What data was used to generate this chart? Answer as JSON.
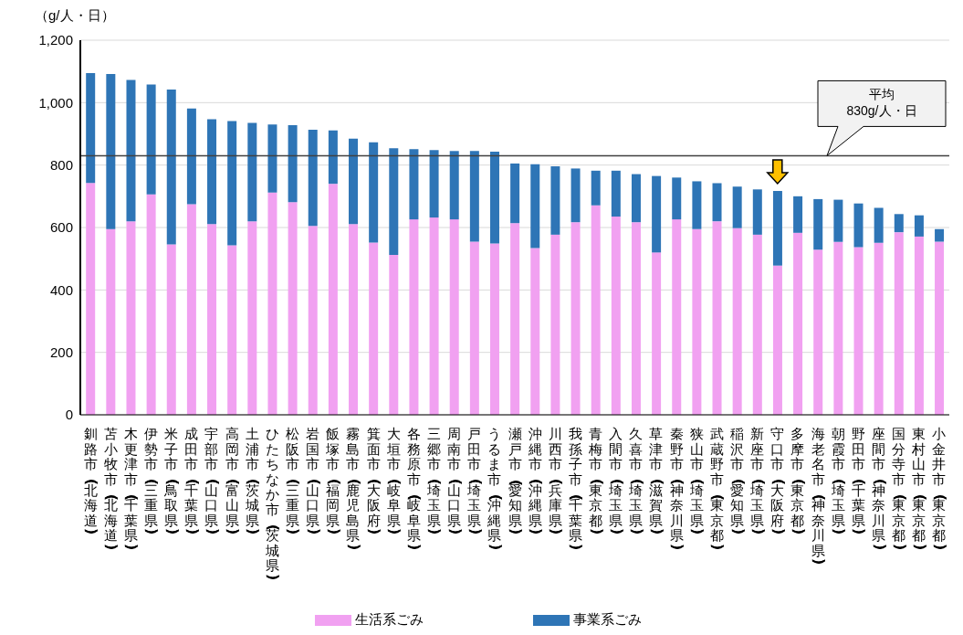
{
  "chart_data": {
    "type": "bar",
    "stacked": true,
    "ylabel": "（g/人・日）",
    "categories": [
      "釧路市（北海道）",
      "苫小牧市（北海道）",
      "木更津市（千葉県）",
      "伊勢市（三重県）",
      "米子市（鳥取県）",
      "成田市（千葉県）",
      "宇部市（山口県）",
      "高岡市（富山県）",
      "土浦市（茨城県）",
      "ひたちなか市（茨城県）",
      "松阪市（三重県）",
      "岩国市（山口県）",
      "飯塚市（福岡県）",
      "霧島市（鹿児島県）",
      "箕面市（大阪府）",
      "大垣市（岐阜県）",
      "各務原市（岐阜県）",
      "三郷市（埼玉県）",
      "周南市（山口県）",
      "戸田市（埼玉県）",
      "うるま市（沖縄県）",
      "瀬戸市（愛知県）",
      "沖縄市（沖縄県）",
      "川西市（兵庫県）",
      "我孫子市（千葉県）",
      "青梅市（東京都）",
      "入間市（埼玉県）",
      "久喜市（埼玉県）",
      "草津市（滋賀県）",
      "秦野市（神奈川県）",
      "狭山市（埼玉県）",
      "武蔵野市（東京都）",
      "稲沢市（愛知県）",
      "新座市（埼玉県）",
      "守口市（大阪府）",
      "多摩市（東京都）",
      "海老名市（神奈川県）",
      "朝霞市（埼玉県）",
      "野田市（千葉県）",
      "座間市（神奈川県）",
      "国分寺市（東京都）",
      "東村山市（東京都）",
      "小金井市（東京都）"
    ],
    "series": [
      {
        "name": "生活系ごみ",
        "color": "#f1a1f1",
        "values": [
          743,
          595,
          620,
          706,
          546,
          675,
          611,
          543,
          620,
          712,
          681,
          605,
          740,
          611,
          552,
          512,
          626,
          632,
          626,
          555,
          549,
          614,
          534,
          577,
          617,
          671,
          635,
          617,
          520,
          626,
          595,
          620,
          598,
          577,
          478,
          583,
          529,
          554,
          537,
          551,
          585,
          571,
          555
        ]
      },
      {
        "name": "事業系ごみ",
        "color": "#2e75b6",
        "values": [
          352,
          497,
          453,
          352,
          496,
          306,
          336,
          398,
          315,
          218,
          247,
          308,
          171,
          274,
          321,
          342,
          225,
          216,
          219,
          290,
          294,
          191,
          269,
          219,
          172,
          111,
          147,
          154,
          245,
          134,
          153,
          122,
          133,
          145,
          239,
          117,
          162,
          135,
          140,
          112,
          58,
          68,
          40
        ]
      }
    ],
    "ylim": [
      0,
      1200
    ],
    "yticks": [
      0,
      200,
      400,
      600,
      800,
      {
        "value": 1000,
        "label": "1,000"
      },
      {
        "value": 1200,
        "label": "1,200"
      }
    ],
    "grid": "y",
    "legend": "bottom",
    "ref_lines": [
      {
        "axis": "y",
        "value": 830,
        "label": "平均\n830g/人・日",
        "color": "#404040"
      }
    ]
  }
}
